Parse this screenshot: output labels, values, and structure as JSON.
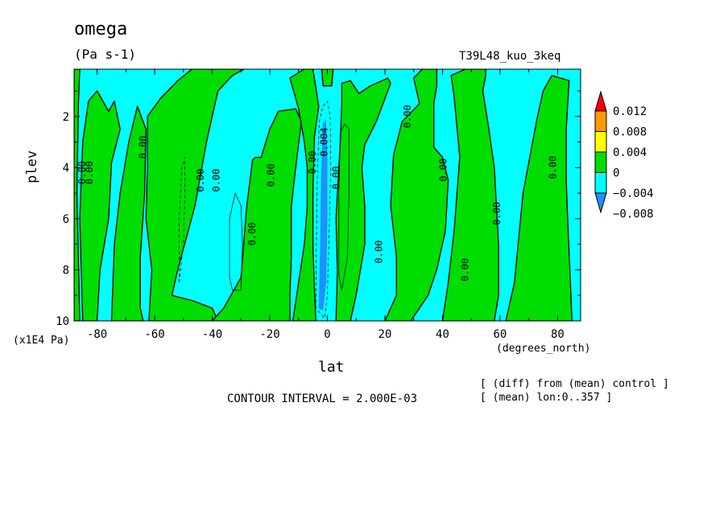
{
  "chart_data": {
    "type": "heatmap",
    "title": "omega",
    "units": "(Pa s-1)",
    "run_id": "T39L48_kuo_3keq",
    "xlabel": "lat",
    "x_unit": "(degrees_north)",
    "ylabel": "plev",
    "y_unit": "(x1E4 Pa)",
    "xlim": [
      -88,
      88
    ],
    "ylim": [
      10,
      0.15
    ],
    "x_ticks": [
      "-80",
      "-60",
      "-40",
      "-20",
      "0",
      "20",
      "40",
      "60",
      "80"
    ],
    "x_tick_values": [
      -80,
      -60,
      -40,
      -20,
      0,
      20,
      40,
      60,
      80
    ],
    "y_ticks": [
      "2",
      "4",
      "6",
      "8",
      "10"
    ],
    "y_tick_values": [
      2,
      4,
      6,
      8,
      10
    ],
    "contour_interval_text": "CONTOUR INTERVAL = 2.000E-03",
    "note_diff": "[ (diff) from (mean) control ]",
    "note_mean": "[ (mean) lon:0..357 ]",
    "colorbar": {
      "labels": [
        "0.012",
        "0.008",
        "0.004",
        "0",
        "−0.004",
        "−0.008"
      ],
      "colors": [
        "#ff0000",
        "#ff9900",
        "#ffff00",
        "#00dd00",
        "#00ffff",
        "#1e90ff"
      ]
    },
    "contour_labels": [
      {
        "text": "0.00",
        "lat": -85,
        "plev": 4.2
      },
      {
        "text": "0.00",
        "lat": -82.5,
        "plev": 4.2
      },
      {
        "text": "0.00",
        "lat": -64,
        "plev": 3.2
      },
      {
        "text": "0.00",
        "lat": -44,
        "plev": 4.5
      },
      {
        "text": "0.00",
        "lat": -38.5,
        "plev": 4.5
      },
      {
        "text": "0.00",
        "lat": -26,
        "plev": 6.6
      },
      {
        "text": "0.00",
        "lat": -19.5,
        "plev": 4.3
      },
      {
        "text": "0.00",
        "lat": -5,
        "plev": 3.8
      },
      {
        "text": "0.004",
        "lat": -1,
        "plev": 3.0
      },
      {
        "text": "0.00",
        "lat": 3.2,
        "plev": 4.4
      },
      {
        "text": "0.00",
        "lat": 18,
        "plev": 7.3
      },
      {
        "text": "0.00",
        "lat": 28,
        "plev": 2.0
      },
      {
        "text": "0.00",
        "lat": 40.5,
        "plev": 4.1
      },
      {
        "text": "0.00",
        "lat": 48,
        "plev": 8.0
      },
      {
        "text": "0.00",
        "lat": 59,
        "plev": 5.8
      },
      {
        "text": "0.00",
        "lat": 78.5,
        "plev": 4.0
      }
    ],
    "regions_positive": [
      [
        [
          -88,
          0.15
        ],
        [
          -86,
          0.15
        ],
        [
          -86.5,
          1.5
        ],
        [
          -87,
          5
        ],
        [
          -86,
          10
        ],
        [
          -88,
          10
        ]
      ],
      [
        [
          -85,
          10
        ],
        [
          -86,
          6
        ],
        [
          -85,
          3
        ],
        [
          -83,
          1.4
        ],
        [
          -80,
          1.0
        ],
        [
          -76,
          1.8
        ],
        [
          -74,
          1.4
        ],
        [
          -72,
          2.5
        ],
        [
          -75,
          3.8
        ],
        [
          -76,
          6
        ],
        [
          -79,
          8
        ],
        [
          -80,
          10
        ]
      ],
      [
        [
          -75,
          10
        ],
        [
          -74,
          7
        ],
        [
          -72,
          5
        ],
        [
          -69,
          3
        ],
        [
          -66,
          1.6
        ],
        [
          -63,
          2.5
        ],
        [
          -63.5,
          5
        ],
        [
          -65,
          7.5
        ],
        [
          -65,
          9.5
        ],
        [
          -64,
          10
        ]
      ],
      [
        [
          -62,
          10
        ],
        [
          -61,
          8
        ],
        [
          -63,
          6
        ],
        [
          -62.5,
          4
        ],
        [
          -62.5,
          2
        ],
        [
          -58,
          1.3
        ],
        [
          -52,
          0.6
        ],
        [
          -47,
          0.15
        ],
        [
          -29,
          0.15
        ],
        [
          -33,
          0.4
        ],
        [
          -38,
          1.0
        ],
        [
          -40,
          2
        ],
        [
          -42,
          3
        ],
        [
          -46,
          5.5
        ],
        [
          -52,
          8
        ],
        [
          -54,
          9
        ],
        [
          -47,
          9.2
        ],
        [
          -40,
          9.5
        ],
        [
          -38,
          10
        ]
      ],
      [
        [
          -40,
          10
        ],
        [
          -36,
          9.5
        ],
        [
          -30,
          8.3
        ],
        [
          -28,
          5.5
        ],
        [
          -26,
          3.7
        ],
        [
          -25,
          3.6
        ],
        [
          -23,
          3.6
        ],
        [
          -20,
          2.5
        ],
        [
          -17,
          1.8
        ],
        [
          -11,
          1.7
        ],
        [
          -9,
          2.2
        ],
        [
          -11,
          4
        ],
        [
          -12.5,
          5.5
        ],
        [
          -12.5,
          7.5
        ],
        [
          -13,
          9
        ],
        [
          -13,
          10
        ]
      ],
      [
        [
          -12,
          10
        ],
        [
          -10,
          8.5
        ],
        [
          -8,
          7
        ],
        [
          -7,
          5.5
        ],
        [
          -7,
          4
        ],
        [
          -8,
          3
        ],
        [
          -10,
          1.7
        ],
        [
          -13,
          0.5
        ],
        [
          -8,
          0.15
        ],
        [
          -5,
          0.15
        ],
        [
          -3,
          1.6
        ],
        [
          -4.5,
          2.8
        ],
        [
          -5,
          5
        ],
        [
          -5,
          7
        ],
        [
          -4.5,
          8.7
        ],
        [
          -4,
          10
        ]
      ],
      [
        [
          3,
          10
        ],
        [
          3.5,
          8
        ],
        [
          3,
          6
        ],
        [
          4.5,
          3
        ],
        [
          5,
          1.5
        ],
        [
          5,
          0.7
        ],
        [
          8,
          0.6
        ],
        [
          11,
          1.1
        ],
        [
          15,
          0.8
        ],
        [
          21,
          0.5
        ],
        [
          22,
          0.7
        ],
        [
          17,
          2.2
        ],
        [
          13,
          3.1
        ],
        [
          12,
          4
        ],
        [
          13,
          5.5
        ],
        [
          13,
          7
        ],
        [
          10,
          9
        ],
        [
          8,
          10
        ]
      ],
      [
        [
          20,
          10
        ],
        [
          24,
          9
        ],
        [
          24,
          7.5
        ],
        [
          22,
          5.5
        ],
        [
          23,
          3.5
        ],
        [
          26,
          2.2
        ],
        [
          32,
          1.5
        ],
        [
          30,
          0.5
        ],
        [
          33,
          0.15
        ],
        [
          38,
          0.15
        ],
        [
          38,
          0.8
        ],
        [
          37,
          1.5
        ],
        [
          37,
          3.2
        ],
        [
          40,
          3.6
        ],
        [
          42,
          4.5
        ],
        [
          41,
          6.5
        ],
        [
          38,
          8
        ],
        [
          35,
          9
        ],
        [
          29,
          10
        ]
      ],
      [
        [
          40,
          10
        ],
        [
          42,
          8.5
        ],
        [
          44,
          6.5
        ],
        [
          46,
          3.6
        ],
        [
          44,
          1.2
        ],
        [
          43,
          0.4
        ],
        [
          48,
          0.15
        ],
        [
          55,
          0.15
        ],
        [
          55,
          0.4
        ],
        [
          54,
          1.0
        ],
        [
          56,
          2.4
        ],
        [
          58,
          4
        ],
        [
          59.5,
          7
        ],
        [
          59.5,
          9
        ],
        [
          58,
          10
        ]
      ],
      [
        [
          62,
          10
        ],
        [
          65,
          8.5
        ],
        [
          68,
          5
        ],
        [
          71,
          3.2
        ],
        [
          73,
          2
        ],
        [
          75,
          1.0
        ],
        [
          78,
          0.4
        ],
        [
          84,
          0.6
        ],
        [
          83,
          2.5
        ],
        [
          83,
          4.5
        ],
        [
          83.5,
          6
        ],
        [
          85,
          10
        ]
      ],
      [
        [
          -2,
          0.15
        ],
        [
          2,
          0.15
        ],
        [
          1.5,
          0.8
        ],
        [
          -1.5,
          0.8
        ]
      ]
    ],
    "regions_negative": [
      [
        [
          -3,
          9.5
        ],
        [
          -2.5,
          7
        ],
        [
          -2.2,
          4.5
        ],
        [
          -1.6,
          2.3
        ],
        [
          -0.5,
          2.1
        ],
        [
          0,
          3.5
        ],
        [
          0,
          6
        ],
        [
          -0.4,
          8.5
        ],
        [
          -1.5,
          9.6
        ]
      ]
    ],
    "contours_thin_solid": [
      [
        [
          -34,
          8.3
        ],
        [
          -34,
          6
        ],
        [
          -32,
          5.0
        ],
        [
          -30,
          5.5
        ],
        [
          -29.5,
          7
        ],
        [
          -30,
          8.8
        ],
        [
          -33,
          8.8
        ],
        [
          -34,
          8.3
        ]
      ],
      [
        [
          4.5,
          2.6
        ],
        [
          6,
          2.3
        ],
        [
          7.5,
          2.5
        ],
        [
          7.5,
          5
        ],
        [
          7,
          7.5
        ],
        [
          5,
          8.8
        ],
        [
          4,
          8.2
        ],
        [
          4,
          5
        ],
        [
          4.5,
          2.6
        ]
      ]
    ],
    "contours_thin_dashed": [
      [
        [
          -51.5,
          8.5
        ],
        [
          -51.5,
          6
        ],
        [
          -50.5,
          4
        ],
        [
          -49.5,
          3.6
        ],
        [
          -49.5,
          5
        ],
        [
          -50,
          7
        ],
        [
          -51.5,
          8.5
        ]
      ],
      [
        [
          -4,
          9.5
        ],
        [
          -3.8,
          7
        ],
        [
          -3.5,
          4.5
        ],
        [
          -2.8,
          2.2
        ],
        [
          -1.6,
          1.6
        ],
        [
          0,
          1.4
        ],
        [
          1,
          2
        ],
        [
          1.2,
          4
        ],
        [
          0.5,
          7
        ],
        [
          0,
          9
        ],
        [
          -1,
          9.9
        ],
        [
          -4,
          9.5
        ]
      ]
    ]
  }
}
